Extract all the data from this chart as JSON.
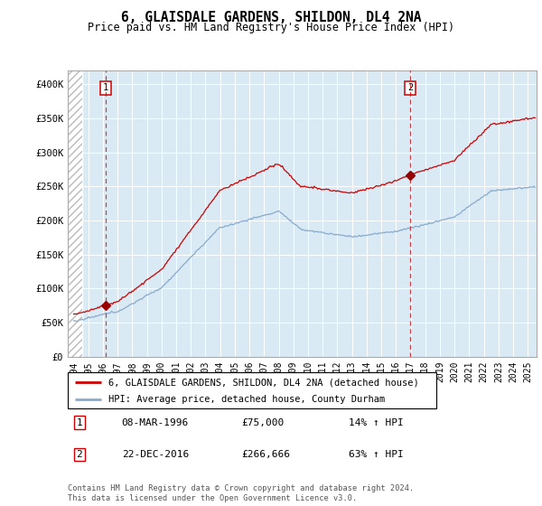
{
  "title": "6, GLAISDALE GARDENS, SHILDON, DL4 2NA",
  "subtitle": "Price paid vs. HM Land Registry's House Price Index (HPI)",
  "ylim": [
    0,
    420000
  ],
  "yticks": [
    0,
    50000,
    100000,
    150000,
    200000,
    250000,
    300000,
    350000,
    400000
  ],
  "ytick_labels": [
    "£0",
    "£50K",
    "£100K",
    "£150K",
    "£200K",
    "£250K",
    "£300K",
    "£350K",
    "£400K"
  ],
  "bg_color": "#daeaf5",
  "line1_color": "#cc0000",
  "line2_color": "#88aacc",
  "marker_color": "#990000",
  "vline_color": "#cc0000",
  "transaction1": {
    "year": 1996.18,
    "price": 75000,
    "label": "1"
  },
  "transaction2": {
    "year": 2016.97,
    "price": 266666,
    "label": "2"
  },
  "legend_line1": "6, GLAISDALE GARDENS, SHILDON, DL4 2NA (detached house)",
  "legend_line2": "HPI: Average price, detached house, County Durham",
  "footer": "Contains HM Land Registry data © Crown copyright and database right 2024.\nThis data is licensed under the Open Government Licence v3.0.",
  "table_rows": [
    [
      "1",
      "08-MAR-1996",
      "£75,000",
      "14% ↑ HPI"
    ],
    [
      "2",
      "22-DEC-2016",
      "£266,666",
      "63% ↑ HPI"
    ]
  ],
  "xlim_left": 1994.0,
  "xlim_right": 2025.6,
  "hatch_end": 1994.6
}
